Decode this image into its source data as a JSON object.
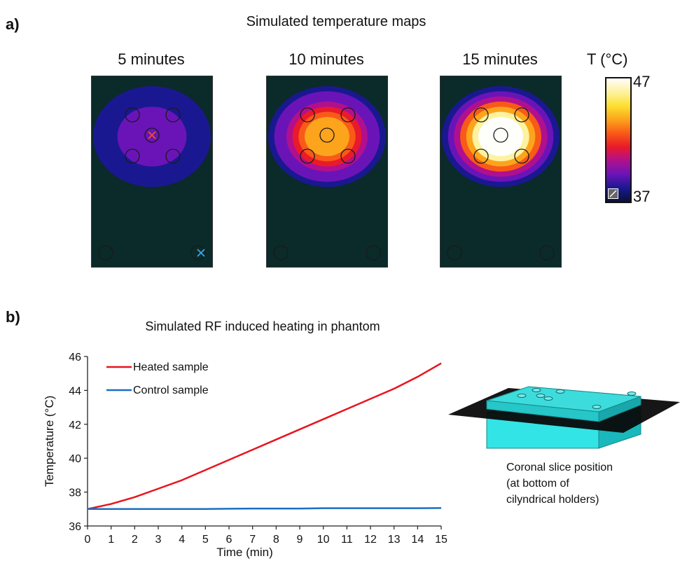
{
  "panel_a": {
    "label": "a)",
    "heading": "Simulated temperature maps",
    "maps": [
      {
        "title": "5 minutes",
        "heat": 0.15
      },
      {
        "title": "10 minutes",
        "heat": 0.55
      },
      {
        "title": "15 minutes",
        "heat": 0.92
      }
    ],
    "colorbar": {
      "title": "T (°C)",
      "max_label": "47",
      "min_label": "37",
      "stops": [
        "#fefefa",
        "#fdf2a0",
        "#fde030",
        "#fca41c",
        "#f85a18",
        "#ea1a2a",
        "#b0108e",
        "#6a14b8",
        "#1a1890",
        "#0a1238"
      ]
    }
  },
  "panel_b": {
    "label": "b)",
    "heading": "Simulated RF induced heating in phantom",
    "caption_lines": [
      "Coronal slice position",
      "(at bottom of",
      "cilyndrical holders)"
    ]
  },
  "chart_data": {
    "type": "line",
    "title": "",
    "xlabel": "Time (min)",
    "ylabel": "Temperature (°C)",
    "xlim": [
      0,
      15
    ],
    "ylim": [
      36,
      46
    ],
    "xticks": [
      0,
      1,
      2,
      3,
      4,
      5,
      6,
      7,
      8,
      9,
      10,
      11,
      12,
      13,
      14,
      15
    ],
    "yticks": [
      36,
      38,
      40,
      42,
      44,
      46
    ],
    "legend_position": "top-left",
    "series": [
      {
        "name": "Heated sample",
        "color": "#e8141e",
        "x": [
          0,
          1,
          2,
          3,
          4,
          5,
          6,
          7,
          8,
          9,
          10,
          11,
          12,
          13,
          14,
          15
        ],
        "y": [
          37.0,
          37.3,
          37.7,
          38.2,
          38.7,
          39.3,
          39.9,
          40.5,
          41.1,
          41.7,
          42.3,
          42.9,
          43.5,
          44.1,
          44.8,
          45.6
        ]
      },
      {
        "name": "Control sample",
        "color": "#1a6fc4",
        "x": [
          0,
          1,
          2,
          3,
          4,
          5,
          6,
          7,
          8,
          9,
          10,
          11,
          12,
          13,
          14,
          15
        ],
        "y": [
          37.0,
          37.0,
          37.0,
          37.0,
          37.0,
          37.0,
          37.02,
          37.03,
          37.03,
          37.03,
          37.05,
          37.05,
          37.05,
          37.05,
          37.05,
          37.06
        ]
      }
    ]
  }
}
